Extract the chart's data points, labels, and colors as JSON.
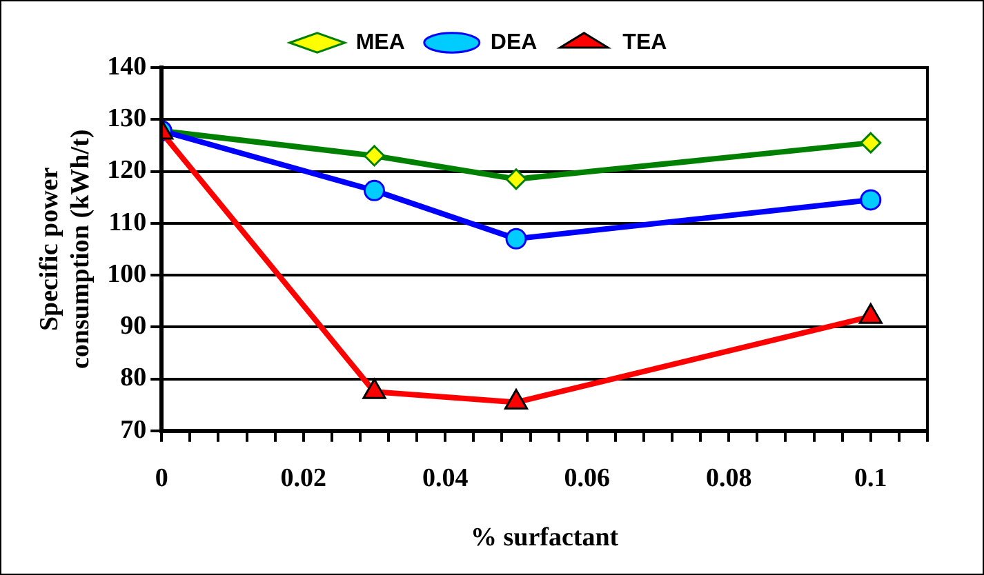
{
  "chart_data": {
    "type": "line",
    "xlabel": "% surfactant",
    "ylabel": "Specific power consumption (kWh/t)",
    "x": [
      0,
      0.03,
      0.05,
      0.1
    ],
    "series": [
      {
        "name": "MEA",
        "color": "#008000",
        "values": [
          127.8,
          123,
          118.5,
          125.5
        ],
        "marker": "diamond"
      },
      {
        "name": "DEA",
        "color": "#0000ff",
        "values": [
          127.8,
          116.3,
          107,
          114.5
        ],
        "marker": "circle"
      },
      {
        "name": "TEA",
        "color": "#ff0000",
        "values": [
          127.5,
          77.5,
          75.5,
          92
        ],
        "marker": "triangle"
      }
    ],
    "xlim": [
      0,
      0.108
    ],
    "xticks": [
      0,
      {
        "value": 0.004,
        "label": null
      },
      {
        "value": 0.008,
        "label": null
      },
      {
        "value": 0.012,
        "label": null
      },
      {
        "value": 0.016,
        "label": null
      },
      {
        "value": 0.02,
        "label": "0.02"
      },
      {
        "value": 0.024,
        "label": null
      },
      {
        "value": 0.028,
        "label": null
      },
      {
        "value": 0.032,
        "label": null
      },
      {
        "value": 0.036,
        "label": null
      },
      {
        "value": 0.04,
        "label": "0.04"
      },
      {
        "value": 0.044,
        "label": null
      },
      {
        "value": 0.048,
        "label": null
      },
      {
        "value": 0.052,
        "label": null
      },
      {
        "value": 0.056,
        "label": null
      },
      {
        "value": 0.06,
        "label": "0.06"
      },
      {
        "value": 0.064,
        "label": null
      },
      {
        "value": 0.068,
        "label": null
      },
      {
        "value": 0.072,
        "label": null
      },
      {
        "value": 0.076,
        "label": null
      },
      {
        "value": 0.08,
        "label": "0.08"
      },
      {
        "value": 0.084,
        "label": null
      },
      {
        "value": 0.088,
        "label": null
      },
      {
        "value": 0.092,
        "label": null
      },
      {
        "value": 0.096,
        "label": null
      },
      {
        "value": 0.1,
        "label": "0.1"
      },
      {
        "value": 0.104,
        "label": null
      },
      {
        "value": 0.108,
        "label": null
      }
    ],
    "ylim": [
      70,
      140
    ],
    "yticks": [
      70,
      80,
      90,
      100,
      110,
      120,
      130,
      140
    ],
    "grid": "y",
    "legend": "top",
    "line_style": "solid"
  }
}
